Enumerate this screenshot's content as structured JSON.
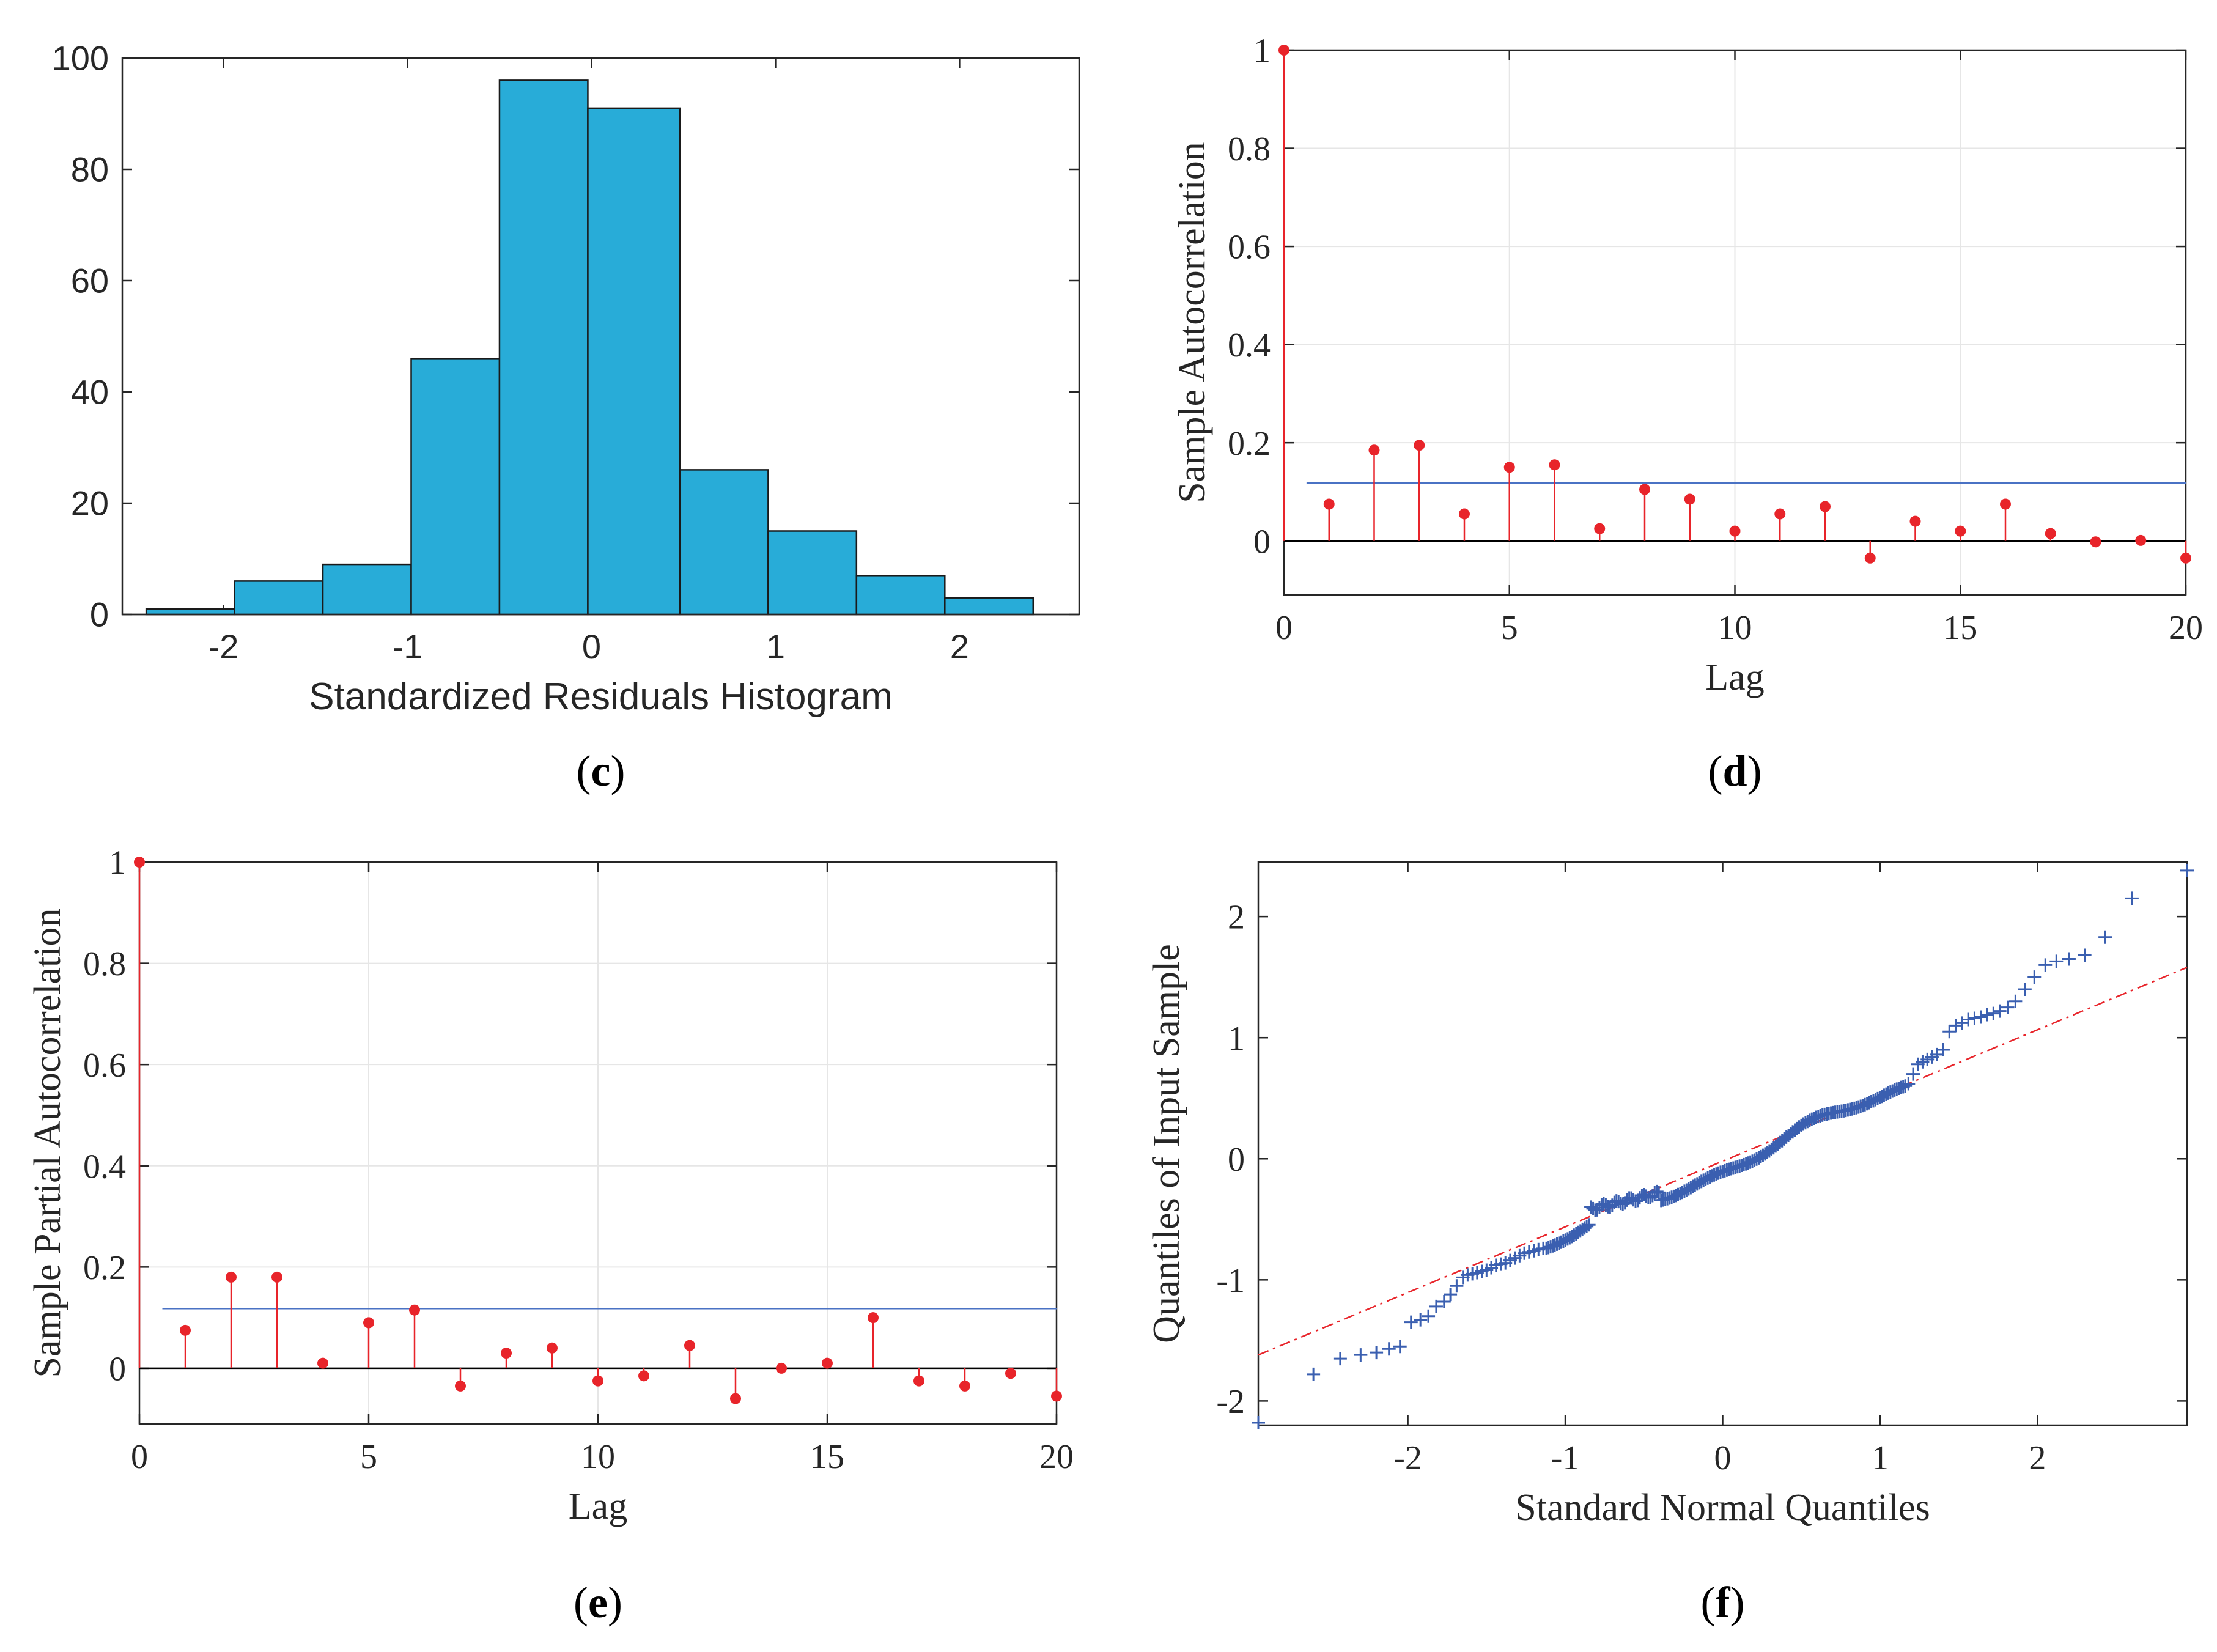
{
  "chart_data": [
    {
      "id": "c",
      "panel_label": "c",
      "type": "bar",
      "title": "",
      "xlabel": "Standardized Residuals Histogram",
      "ylabel": "",
      "xlim": [
        -2.55,
        2.65
      ],
      "ylim": [
        0,
        100
      ],
      "xticks": [
        -2,
        -1,
        0,
        1,
        2
      ],
      "yticks": [
        0,
        20,
        40,
        60,
        80,
        100
      ],
      "bin_edges": [
        -2.42,
        -1.94,
        -1.46,
        -0.98,
        -0.5,
        -0.02,
        0.48,
        0.96,
        1.44,
        1.92,
        2.4
      ],
      "values": [
        1,
        6,
        9,
        46,
        96,
        91,
        26,
        15,
        7,
        3
      ],
      "bar_color": "#28acd8",
      "grid": false
    },
    {
      "id": "d",
      "panel_label": "d",
      "type": "scatter",
      "title": "",
      "xlabel": "Lag",
      "ylabel": "Sample Autocorrelation",
      "xlim": [
        0,
        20
      ],
      "ylim": [
        -0.11,
        1
      ],
      "xticks": [
        0,
        5,
        10,
        15,
        20
      ],
      "yticks": [
        0,
        0.2,
        0.4,
        0.6,
        0.8,
        1
      ],
      "lags": [
        0,
        1,
        2,
        3,
        4,
        5,
        6,
        7,
        8,
        9,
        10,
        11,
        12,
        13,
        14,
        15,
        16,
        17,
        18,
        19,
        20
      ],
      "values": [
        1,
        0.075,
        0.185,
        0.195,
        0.055,
        0.15,
        0.155,
        0.025,
        0.105,
        0.085,
        0.02,
        0.055,
        0.07,
        -0.035,
        0.04,
        0.02,
        0.075,
        0.015,
        -0.002,
        0.001,
        -0.035
      ],
      "confidence_bound": 0.118,
      "confidence_xstart": 0.5,
      "grid": true
    },
    {
      "id": "e",
      "panel_label": "e",
      "type": "scatter",
      "title": "",
      "xlabel": "Lag",
      "ylabel": "Sample Partial Autocorrelation",
      "xlim": [
        0,
        20
      ],
      "ylim": [
        -0.11,
        1
      ],
      "xticks": [
        0,
        5,
        10,
        15,
        20
      ],
      "yticks": [
        0,
        0.2,
        0.4,
        0.6,
        0.8,
        1
      ],
      "lags": [
        0,
        1,
        2,
        3,
        4,
        5,
        6,
        7,
        8,
        9,
        10,
        11,
        12,
        13,
        14,
        15,
        16,
        17,
        18,
        19,
        20
      ],
      "values": [
        1,
        0.075,
        0.18,
        0.18,
        0.01,
        0.09,
        0.115,
        -0.035,
        0.03,
        0.04,
        -0.025,
        -0.015,
        0.045,
        -0.06,
        0.0,
        0.01,
        0.1,
        -0.025,
        -0.035,
        -0.01,
        -0.055
      ],
      "confidence_bound": 0.118,
      "confidence_xstart": 0.5,
      "grid": true
    },
    {
      "id": "f",
      "panel_label": "f",
      "type": "scatter",
      "title": "",
      "xlabel": "Standard Normal Quantiles",
      "ylabel": "Quantiles of Input Sample",
      "xlim": [
        -2.95,
        2.95
      ],
      "ylim": [
        -2.2,
        2.45
      ],
      "xticks": [
        -2,
        -1,
        0,
        1,
        2
      ],
      "yticks": [
        -2,
        -1,
        0,
        1,
        2
      ],
      "reference_line": {
        "x": [
          -2.95,
          2.95
        ],
        "y": [
          -1.62,
          1.58
        ]
      },
      "tail_points": {
        "x": [
          -2.95,
          -2.6,
          -2.43,
          -2.3,
          -2.2,
          -2.12,
          -2.05,
          -1.98,
          -1.92,
          -1.87,
          -1.82,
          -1.77,
          -1.73,
          -1.69,
          -1.65,
          -1.62,
          -1.59,
          -1.56,
          -1.53,
          -1.5,
          -1.47,
          -1.44,
          -1.41,
          -1.38,
          -1.35,
          -1.32,
          -1.29,
          -1.26,
          -1.23,
          -1.2,
          -1.17,
          -1.14,
          1.18,
          1.21,
          1.24,
          1.27,
          1.3,
          1.33,
          1.36,
          1.4,
          1.44,
          1.48,
          1.52,
          1.56,
          1.6,
          1.64,
          1.68,
          1.72,
          1.76,
          1.81,
          1.86,
          1.92,
          1.98,
          2.05,
          2.12,
          2.2,
          2.3,
          2.43,
          2.6,
          2.95
        ],
        "y": [
          -2.18,
          -1.78,
          -1.65,
          -1.62,
          -1.6,
          -1.57,
          -1.55,
          -1.35,
          -1.33,
          -1.3,
          -1.22,
          -1.18,
          -1.12,
          -1.05,
          -0.98,
          -0.96,
          -0.95,
          -0.94,
          -0.93,
          -0.92,
          -0.9,
          -0.88,
          -0.87,
          -0.86,
          -0.84,
          -0.82,
          -0.8,
          -0.78,
          -0.77,
          -0.76,
          -0.75,
          -0.74,
          0.62,
          0.7,
          0.78,
          0.8,
          0.82,
          0.84,
          0.86,
          0.9,
          1.05,
          1.1,
          1.12,
          1.15,
          1.16,
          1.17,
          1.19,
          1.2,
          1.22,
          1.25,
          1.3,
          1.4,
          1.5,
          1.6,
          1.63,
          1.65,
          1.68,
          1.83,
          2.15,
          2.38
        ]
      },
      "core_range": {
        "x": [
          -1.12,
          1.16
        ],
        "y_at_xmin": -0.74,
        "y_at_xmax": 0.6
      },
      "marker": "+",
      "marker_color": "#3a5fb0",
      "grid": false
    }
  ]
}
